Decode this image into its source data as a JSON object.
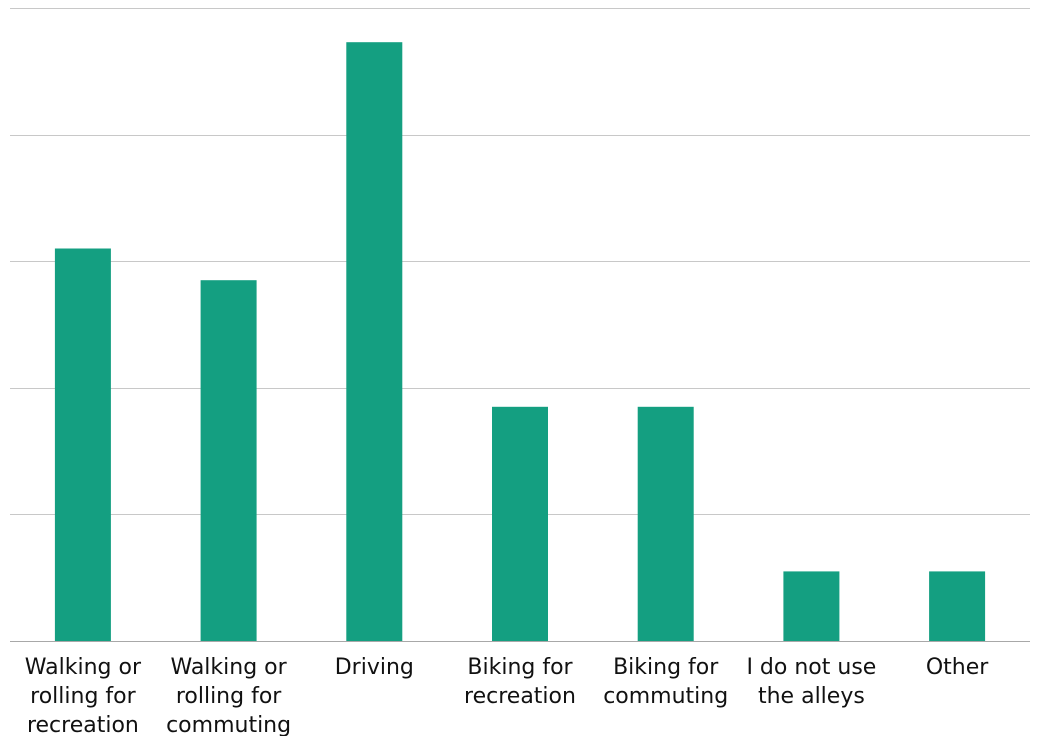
{
  "chart_data": {
    "type": "bar",
    "categories": [
      [
        "Walking or",
        "rolling for",
        "recreation"
      ],
      [
        "Walking or",
        "rolling for",
        "commuting"
      ],
      [
        "Driving"
      ],
      [
        "Biking for",
        "recreation"
      ],
      [
        "Biking for",
        "commuting"
      ],
      [
        "I do not use",
        "the alleys"
      ],
      [
        "Other"
      ]
    ],
    "values": [
      31,
      28.5,
      47.3,
      18.5,
      18.5,
      5.5,
      5.5
    ],
    "ylim": [
      0,
      50
    ],
    "ytick_step": 10,
    "grid": true,
    "bar_color": "#149f81",
    "title": "",
    "xlabel": "",
    "ylabel": ""
  }
}
